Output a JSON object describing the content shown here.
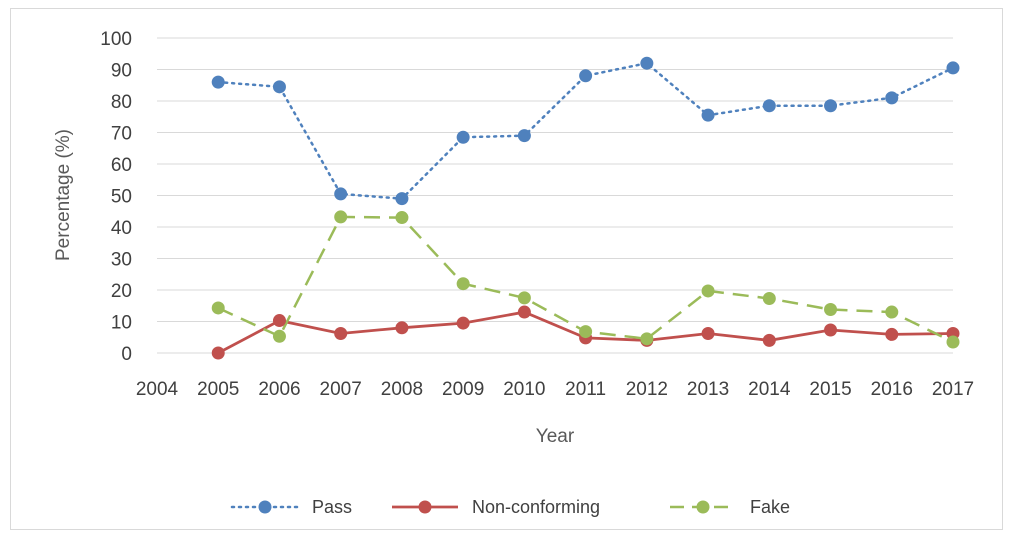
{
  "chart_data": {
    "type": "line",
    "title": "",
    "xlabel": "Year",
    "ylabel": "Percentage (%)",
    "x_ticks": [
      "2004",
      "2005",
      "2006",
      "2007",
      "2008",
      "2009",
      "2010",
      "2011",
      "2012",
      "2013",
      "2014",
      "2015",
      "2016",
      "2017"
    ],
    "x": [
      2005,
      2006,
      2007,
      2008,
      2009,
      2010,
      2011,
      2012,
      2013,
      2014,
      2015,
      2016,
      2017
    ],
    "xlim": [
      2004,
      2017
    ],
    "ylim": [
      0,
      100
    ],
    "y_ticks": [
      0,
      10,
      20,
      30,
      40,
      50,
      60,
      70,
      80,
      90,
      100
    ],
    "grid": "horizontal",
    "legend_position": "bottom",
    "series": [
      {
        "name": "Pass",
        "color": "#4f81bd",
        "line_style": "dotted",
        "values": [
          86,
          84.5,
          50.5,
          49,
          68.5,
          69,
          88,
          92,
          75.5,
          78.5,
          78.5,
          81,
          90.5
        ]
      },
      {
        "name": "Non-conforming",
        "color": "#c0504d",
        "line_style": "solid",
        "values": [
          0,
          10.3,
          6.2,
          8,
          9.5,
          13,
          4.8,
          4,
          6.2,
          4,
          7.3,
          5.9,
          6.2
        ]
      },
      {
        "name": "Fake",
        "color": "#9bbb59",
        "line_style": "dashed",
        "values": [
          14.3,
          5.3,
          43.2,
          43,
          22,
          17.5,
          6.8,
          4.5,
          19.7,
          17.3,
          13.8,
          13,
          3.5
        ]
      }
    ]
  }
}
